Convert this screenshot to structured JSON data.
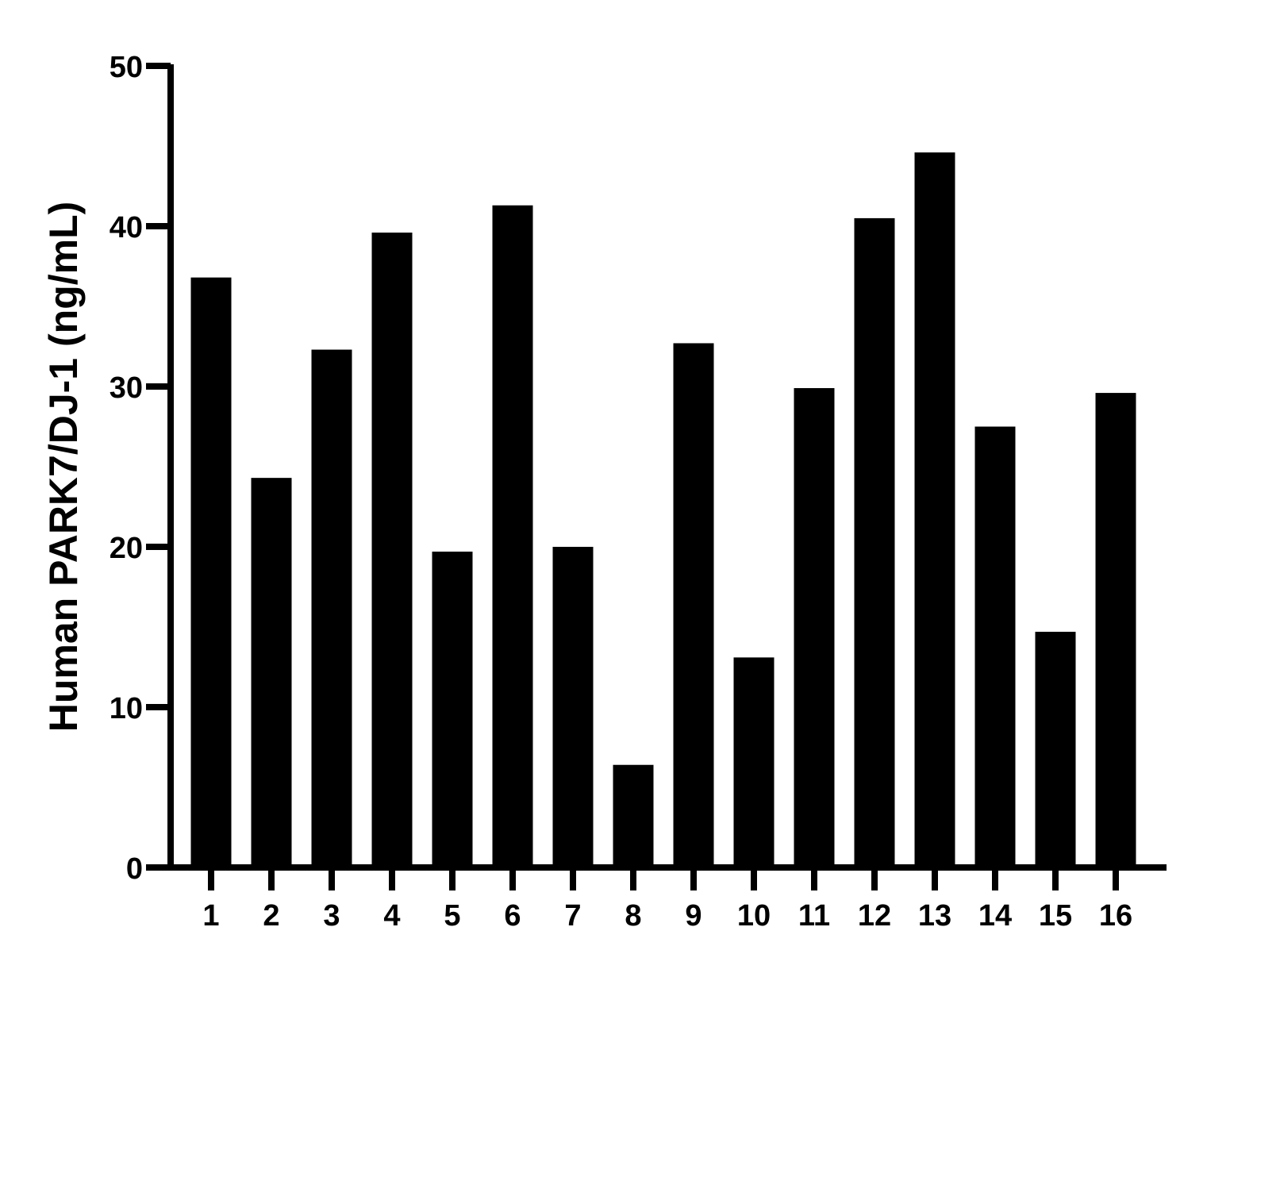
{
  "chart_data": {
    "type": "bar",
    "title": "",
    "xlabel": "",
    "ylabel": "Human PARK7/DJ-1 (ng/mL)",
    "categories": [
      "1",
      "2",
      "3",
      "4",
      "5",
      "6",
      "7",
      "8",
      "9",
      "10",
      "11",
      "12",
      "13",
      "14",
      "15",
      "16"
    ],
    "values": [
      36.8,
      24.3,
      32.3,
      39.6,
      19.7,
      41.3,
      20.0,
      6.4,
      32.7,
      13.1,
      29.9,
      40.5,
      44.6,
      27.5,
      14.7,
      29.6
    ],
    "ylim": [
      0,
      50
    ],
    "yticks": [
      "0",
      "10",
      "20",
      "30",
      "40",
      "50"
    ],
    "grid": false,
    "legend": "none",
    "bar_color": "#000000",
    "axis_color": "#000000"
  }
}
